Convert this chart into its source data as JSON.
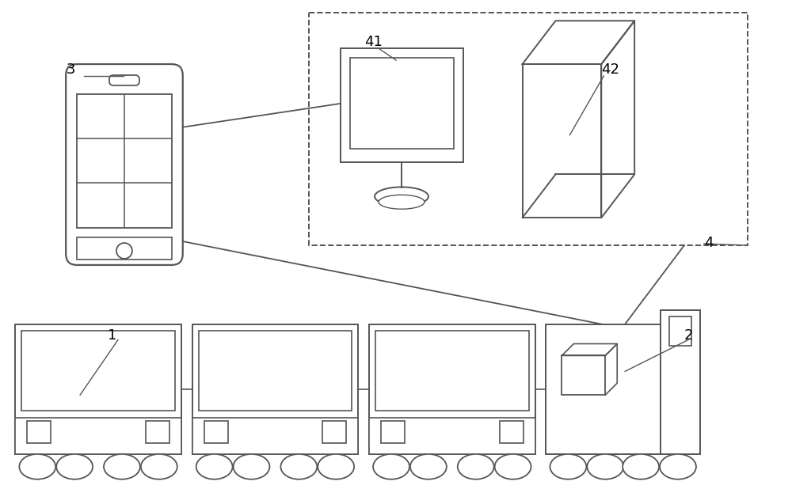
{
  "background_color": "#ffffff",
  "line_color": "#555555",
  "label_color": "#000000",
  "label_fontsize": 13,
  "fig_w": 10.0,
  "fig_h": 6.37,
  "dpi": 100
}
